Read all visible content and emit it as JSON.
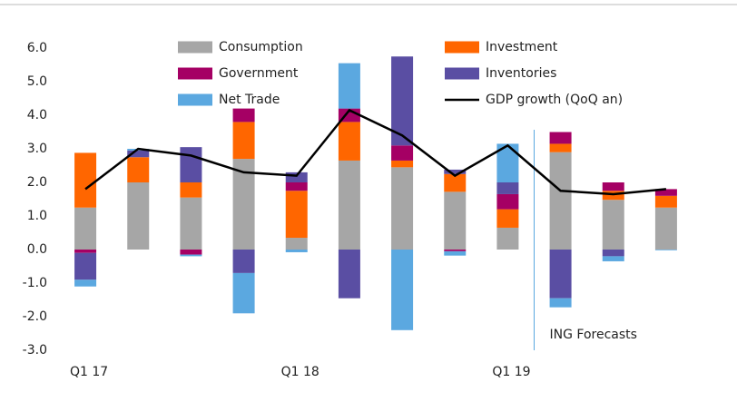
{
  "chart_data": {
    "type": "bar",
    "stacked": true,
    "categories": [
      "Q1 17",
      null,
      null,
      null,
      "Q1 18",
      null,
      null,
      null,
      "Q1 19",
      null,
      null,
      null
    ],
    "series": [
      {
        "name": "Consumption",
        "color": "#a6a6a6",
        "values": [
          1.25,
          2.0,
          1.55,
          2.7,
          0.35,
          2.65,
          2.45,
          1.72,
          0.65,
          2.9,
          1.48,
          1.25
        ]
      },
      {
        "name": "Investment",
        "color": "#ff6600",
        "values": [
          1.63,
          0.75,
          0.45,
          1.1,
          1.4,
          1.15,
          0.2,
          0.53,
          0.55,
          0.25,
          0.27,
          0.35
        ]
      },
      {
        "name": "Government",
        "color": "#a50064",
        "values": [
          -0.1,
          0,
          -0.15,
          0.4,
          0.25,
          0.4,
          0.45,
          -0.05,
          0.45,
          0.35,
          0.25,
          0.2
        ]
      },
      {
        "name": "Inventories",
        "color": "#5a4ea3",
        "values": [
          -0.8,
          0.2,
          1.05,
          -0.7,
          0.3,
          -1.45,
          2.65,
          0.13,
          0.35,
          -1.45,
          -0.2,
          0
        ]
      },
      {
        "name": "Net Trade",
        "color": "#5ba8e0",
        "values": [
          -0.2,
          0.05,
          -0.05,
          -1.2,
          -0.08,
          1.35,
          -2.4,
          -0.13,
          1.15,
          -0.27,
          -0.15,
          -0.02
        ]
      },
      {
        "name": "GDP growth (QoQ an)",
        "color": "#000000",
        "type": "line",
        "values": [
          1.8,
          3.0,
          2.8,
          2.3,
          2.2,
          4.15,
          3.4,
          2.2,
          3.1,
          1.75,
          1.65,
          1.8
        ]
      }
    ],
    "ylim": [
      -3.0,
      6.0
    ],
    "yticks": [
      {
        "value": 6,
        "label": "6.0"
      },
      {
        "value": 5,
        "label": "5.0"
      },
      {
        "value": 4,
        "label": "4.0"
      },
      {
        "value": 3,
        "label": "3.0"
      },
      {
        "value": 2,
        "label": "2.0"
      },
      {
        "value": 1,
        "label": "1.0"
      },
      {
        "value": 0,
        "label": "0.0"
      },
      {
        "value": -1,
        "label": "-1.0"
      },
      {
        "value": -2,
        "label": "-2.0"
      },
      {
        "value": -3,
        "label": "-3.0"
      }
    ],
    "annotation": "ING Forecasts"
  }
}
